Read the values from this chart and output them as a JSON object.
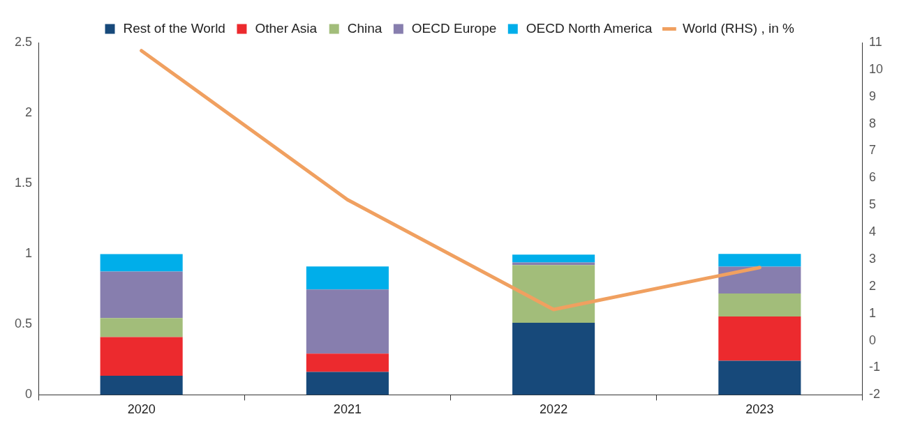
{
  "chart_data": {
    "type": "bar",
    "stacked": true,
    "categories": [
      "2020",
      "2021",
      "2022",
      "2023"
    ],
    "series": [
      {
        "name": "Rest of the World",
        "color": "#17497a",
        "values": [
          0.135,
          0.163,
          0.511,
          0.242
        ]
      },
      {
        "name": "Other Asia",
        "color": "#ec2a2e",
        "values": [
          0.275,
          0.13,
          null,
          0.314
        ]
      },
      {
        "name": "China",
        "color": "#a2bd7a",
        "values": [
          0.135,
          0,
          0.41,
          0.163
        ]
      },
      {
        "name": "OECD Europe",
        "color": "#877eae",
        "values": [
          0.33,
          0.455,
          0.018,
          0.191
        ]
      },
      {
        "name": "OECD North America",
        "color": "#00aeea",
        "values": [
          0.124,
          0.163,
          0.056,
          0.09
        ]
      },
      {
        "name": "World (RHS) , in %",
        "type": "line",
        "axis": "y2",
        "color": "#f0a060",
        "values": [
          10.7,
          5.2,
          1.15,
          2.7
        ]
      }
    ],
    "ylim": [
      0,
      2.5
    ],
    "yticks": [
      0,
      0.5,
      1,
      1.5,
      2,
      2.5
    ],
    "y2lim": [
      -2,
      11
    ],
    "y2ticks": [
      -2,
      -1,
      0,
      1,
      2,
      3,
      4,
      5,
      6,
      7,
      8,
      9,
      10,
      11
    ],
    "grid": false,
    "legend": "top",
    "marker": "none",
    "line_style": "solid"
  }
}
